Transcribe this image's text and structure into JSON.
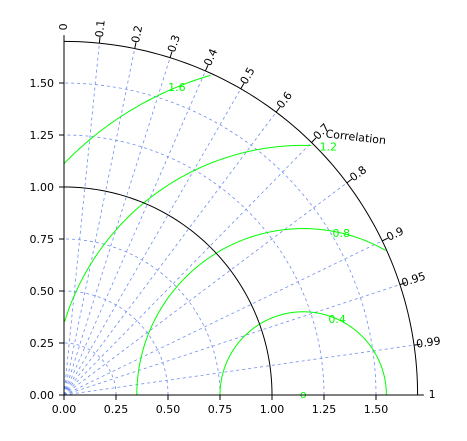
{
  "chart_data": {
    "type": "taylor-diagram",
    "std_axis": {
      "ticks": [
        0.0,
        0.25,
        0.5,
        0.75,
        1.0,
        1.25,
        1.5
      ],
      "x_tick_labels": [
        "0.00",
        "0.25",
        "0.50",
        "0.75",
        "1.00",
        "1.25",
        "1.50"
      ],
      "y_tick_labels": [
        "0.00",
        "0.25",
        "0.50",
        "0.75",
        "1.00",
        "1.25",
        "1.50"
      ],
      "max": 1.7
    },
    "correlation_axis": {
      "label": "Correlation",
      "ticks": [
        0,
        0.1,
        0.2,
        0.3,
        0.4,
        0.5,
        0.6,
        0.7,
        0.8,
        0.9,
        0.95,
        0.99,
        1
      ],
      "tick_labels": [
        "0",
        "0.1",
        "0.2",
        "0.3",
        "0.4",
        "0.5",
        "0.6",
        "0.7",
        "0.8",
        "0.9",
        "0.95",
        "0.99",
        "1"
      ]
    },
    "reference": {
      "std": 1.0,
      "rms_center": 1.15
    },
    "rms_contours": [
      {
        "value": 0.4,
        "label": "0.4"
      },
      {
        "value": 0.8,
        "label": "0.8"
      },
      {
        "value": 1.2,
        "label": "1.2"
      },
      {
        "value": 1.6,
        "label": "1.6"
      }
    ],
    "rms_center_marker": "o",
    "grid": true,
    "colors": {
      "rms": "#00ff00",
      "grid": "#6f8fef",
      "axis": "#000000",
      "reference": "#000000"
    }
  }
}
